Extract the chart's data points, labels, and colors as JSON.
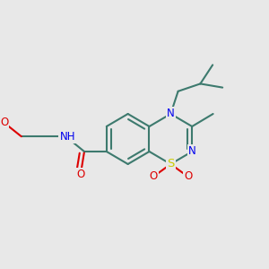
{
  "bg_color": "#e8e8e8",
  "bond_color": "#3d7a6e",
  "bond_width": 1.5,
  "atom_colors": {
    "N": "#0000ee",
    "O": "#dd0000",
    "S": "#cccc00"
  },
  "font_size": 8.5
}
